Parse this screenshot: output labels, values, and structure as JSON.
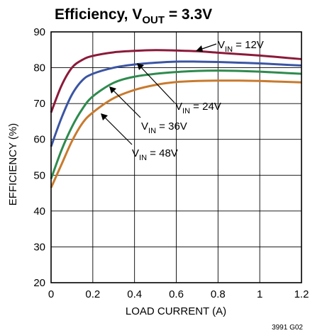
{
  "chart_data": {
    "type": "line",
    "title_main": "Efficiency, V",
    "title_sub": "OUT",
    "title_tail": " = 3.3V",
    "xlabel": "LOAD CURRENT (A)",
    "ylabel": "EFFICIENCY (%)",
    "xlim": [
      0,
      1.2
    ],
    "ylim": [
      20,
      90
    ],
    "x_ticks": [
      "0",
      "0.2",
      "0.4",
      "0.6",
      "0.8",
      "1",
      "1.2"
    ],
    "y_ticks": [
      "20",
      "30",
      "40",
      "50",
      "60",
      "70",
      "80",
      "90"
    ],
    "grid": true,
    "code": "3991 G02",
    "series": [
      {
        "name": "VIN = 12V",
        "label_main": "V",
        "label_sub": "IN",
        "label_tail": " = 12V",
        "color": "#8b1a3a",
        "x": [
          0,
          0.05,
          0.1,
          0.15,
          0.2,
          0.3,
          0.4,
          0.5,
          0.6,
          0.7,
          0.8,
          0.9,
          1.0,
          1.1,
          1.2
        ],
        "y": [
          67.5,
          75,
          80,
          82.2,
          83.3,
          84.3,
          84.7,
          84.9,
          84.8,
          84.6,
          84.2,
          83.8,
          83.4,
          82.9,
          82.4
        ]
      },
      {
        "name": "VIN = 24V",
        "label_main": "V",
        "label_sub": "IN",
        "label_tail": " = 24V",
        "color": "#3b55a3",
        "x": [
          0,
          0.05,
          0.1,
          0.15,
          0.2,
          0.3,
          0.4,
          0.5,
          0.6,
          0.7,
          0.8,
          0.9,
          1.0,
          1.1,
          1.2
        ],
        "y": [
          58,
          66,
          72.5,
          76.5,
          78.3,
          80,
          80.9,
          81.4,
          81.7,
          81.7,
          81.6,
          81.4,
          81.2,
          80.9,
          80.6
        ]
      },
      {
        "name": "VIN = 36V",
        "label_main": "V",
        "label_sub": "IN",
        "label_tail": " = 36V",
        "color": "#2e8b4e",
        "x": [
          0,
          0.05,
          0.1,
          0.15,
          0.2,
          0.3,
          0.4,
          0.5,
          0.6,
          0.7,
          0.8,
          0.9,
          1.0,
          1.1,
          1.2
        ],
        "y": [
          49,
          57,
          63.5,
          68.5,
          72,
          75.8,
          77.5,
          78.3,
          78.8,
          79.1,
          79.2,
          79.1,
          78.9,
          78.6,
          78.3
        ]
      },
      {
        "name": "VIN = 48V",
        "label_main": "V",
        "label_sub": "IN",
        "label_tail": " = 48V",
        "color": "#c87a2e",
        "x": [
          0,
          0.05,
          0.1,
          0.15,
          0.2,
          0.3,
          0.4,
          0.5,
          0.6,
          0.7,
          0.8,
          0.9,
          1.0,
          1.1,
          1.2
        ],
        "y": [
          46.5,
          53,
          59.5,
          64.5,
          67.5,
          71.5,
          73.8,
          75.2,
          76,
          76.3,
          76.4,
          76.4,
          76.3,
          76.1,
          75.9
        ]
      }
    ]
  }
}
